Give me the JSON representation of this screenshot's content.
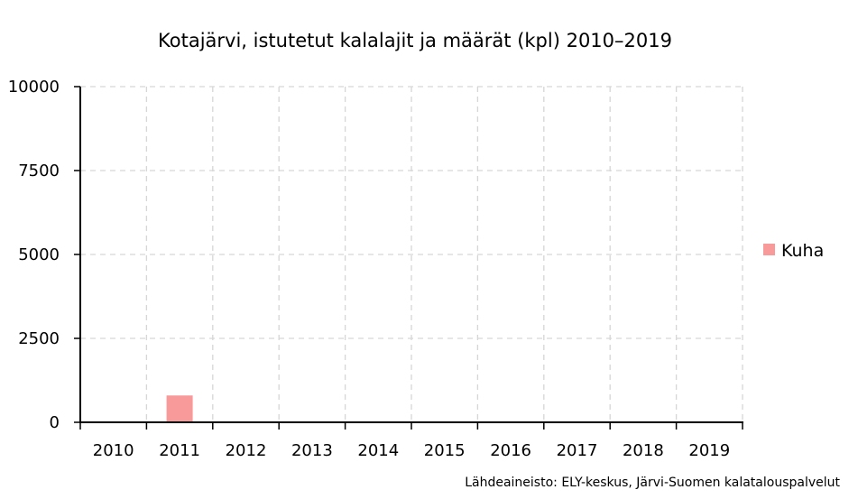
{
  "chart_data": {
    "type": "bar",
    "title": "Kotajärvi, istutetut kalalajit ja määrät (kpl) 2010–2019",
    "xlabel": "",
    "ylabel": "",
    "categories": [
      "2010",
      "2011",
      "2012",
      "2013",
      "2014",
      "2015",
      "2016",
      "2017",
      "2018",
      "2019"
    ],
    "series": [
      {
        "name": "Kuha",
        "values": [
          0,
          800,
          0,
          0,
          0,
          0,
          0,
          0,
          0,
          0
        ],
        "color": "#f99a9a"
      }
    ],
    "ylim": [
      0,
      10000
    ],
    "yticks": [
      "0",
      "2500",
      "5000",
      "7500",
      "10000"
    ],
    "grid": true,
    "legend": "right",
    "source": "Lähdeaineisto: ELY-keskus, Järvi-Suomen kalatalouspalvelut"
  }
}
